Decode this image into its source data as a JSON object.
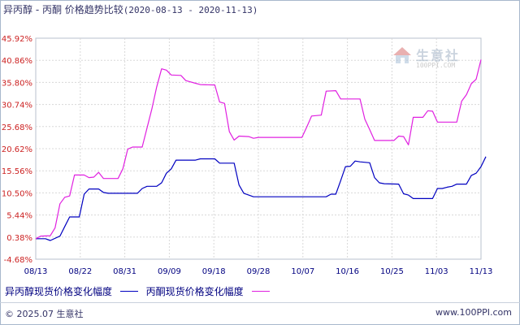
{
  "title": {
    "main": "异丙醇 - 丙酮 价格趋势比较",
    "range": "(2020-08-13 - 2020-11-13)"
  },
  "legend": [
    {
      "label": "异丙醇现货价格变化幅度",
      "color": "#0000c0"
    },
    {
      "label": "丙酮现货价格变化幅度",
      "color": "#e020e0"
    }
  ],
  "watermark": {
    "name": "生意社",
    "url": "100PPI.COM"
  },
  "footer": {
    "copyright": "© 2025.07 生意社",
    "site": "www.100PPI.com"
  },
  "chart_data": {
    "type": "line",
    "x_tick_labels": [
      "08/13",
      "08/22",
      "08/31",
      "09/09",
      "09/18",
      "09/28",
      "10/07",
      "10/16",
      "10/25",
      "11/03",
      "11/13"
    ],
    "y_tick_labels": [
      "45.92%",
      "40.86%",
      "35.80%",
      "30.74%",
      "25.68%",
      "20.62%",
      "15.56%",
      "10.50%",
      "5.44%",
      "0.38%",
      "-4.68%"
    ],
    "ylim": [
      -4.68,
      45.92
    ],
    "grid": true,
    "series": [
      {
        "name": "异丙醇现货价格变化幅度",
        "color": "#0000c0",
        "points": [
          [
            0,
            0.0
          ],
          [
            2,
            0.0
          ],
          [
            3,
            -0.4
          ],
          [
            5,
            0.6
          ],
          [
            6,
            2.8
          ],
          [
            7,
            5.0
          ],
          [
            9,
            5.0
          ],
          [
            10,
            10.2
          ],
          [
            11,
            11.4
          ],
          [
            13,
            11.4
          ],
          [
            14,
            10.6
          ],
          [
            15,
            10.4
          ],
          [
            21,
            10.4
          ],
          [
            22,
            11.5
          ],
          [
            23,
            12.0
          ],
          [
            25,
            12.0
          ],
          [
            26,
            12.8
          ],
          [
            27,
            15.0
          ],
          [
            28,
            16.0
          ],
          [
            29,
            18.0
          ],
          [
            33,
            18.0
          ],
          [
            34,
            18.3
          ],
          [
            37,
            18.3
          ],
          [
            38,
            17.3
          ],
          [
            41,
            17.3
          ],
          [
            42,
            12.3
          ],
          [
            43,
            10.4
          ],
          [
            44,
            10.0
          ],
          [
            45,
            9.6
          ],
          [
            56,
            9.6
          ],
          [
            57,
            9.6
          ],
          [
            60,
            9.6
          ],
          [
            61,
            10.2
          ],
          [
            62,
            10.2
          ],
          [
            63,
            13.3
          ],
          [
            64,
            16.5
          ],
          [
            65,
            16.6
          ],
          [
            66,
            17.8
          ],
          [
            67,
            17.6
          ],
          [
            69,
            17.4
          ],
          [
            70,
            14.0
          ],
          [
            71,
            12.8
          ],
          [
            72,
            12.6
          ],
          [
            75,
            12.5
          ],
          [
            76,
            10.3
          ],
          [
            77,
            10.0
          ],
          [
            78,
            9.2
          ],
          [
            82,
            9.2
          ],
          [
            83,
            11.5
          ],
          [
            84,
            11.5
          ],
          [
            85,
            11.8
          ],
          [
            86,
            12.0
          ],
          [
            87,
            12.5
          ],
          [
            89,
            12.5
          ],
          [
            90,
            14.5
          ],
          [
            91,
            15.0
          ],
          [
            92,
            16.5
          ],
          [
            93,
            18.8
          ]
        ]
      },
      {
        "name": "丙酮现货价格变化幅度",
        "color": "#e020e0",
        "points": [
          [
            0,
            0.0
          ],
          [
            1,
            0.6
          ],
          [
            3,
            0.7
          ],
          [
            4,
            2.5
          ],
          [
            5,
            8.0
          ],
          [
            6,
            9.5
          ],
          [
            7,
            9.8
          ],
          [
            8,
            14.6
          ],
          [
            10,
            14.6
          ],
          [
            11,
            14.0
          ],
          [
            12,
            14.1
          ],
          [
            13,
            15.2
          ],
          [
            14,
            13.8
          ],
          [
            17,
            13.8
          ],
          [
            18,
            16.0
          ],
          [
            19,
            20.5
          ],
          [
            20,
            21.0
          ],
          [
            22,
            21.0
          ],
          [
            24,
            29.8
          ],
          [
            25,
            34.8
          ],
          [
            26,
            38.9
          ],
          [
            27,
            38.6
          ],
          [
            28,
            37.5
          ],
          [
            30,
            37.4
          ],
          [
            31,
            36.2
          ],
          [
            33,
            35.6
          ],
          [
            34,
            35.3
          ],
          [
            37,
            35.2
          ],
          [
            38,
            31.3
          ],
          [
            39,
            31.0
          ],
          [
            40,
            24.5
          ],
          [
            41,
            22.6
          ],
          [
            42,
            23.5
          ],
          [
            44,
            23.4
          ],
          [
            45,
            23.0
          ],
          [
            46,
            23.2
          ],
          [
            55,
            23.2
          ],
          [
            56,
            25.6
          ],
          [
            57,
            28.1
          ],
          [
            59,
            28.3
          ],
          [
            60,
            33.8
          ],
          [
            62,
            33.9
          ],
          [
            63,
            32.0
          ],
          [
            67,
            32.0
          ],
          [
            68,
            27.4
          ],
          [
            69,
            25.0
          ],
          [
            70,
            22.5
          ],
          [
            74,
            22.5
          ],
          [
            75,
            23.5
          ],
          [
            76,
            23.4
          ],
          [
            77,
            21.5
          ],
          [
            78,
            27.8
          ],
          [
            80,
            27.8
          ],
          [
            81,
            29.3
          ],
          [
            82,
            29.2
          ],
          [
            83,
            26.7
          ],
          [
            87,
            26.7
          ],
          [
            88,
            31.5
          ],
          [
            89,
            33.0
          ],
          [
            90,
            35.5
          ],
          [
            91,
            36.5
          ],
          [
            92,
            41.0
          ]
        ]
      }
    ]
  }
}
